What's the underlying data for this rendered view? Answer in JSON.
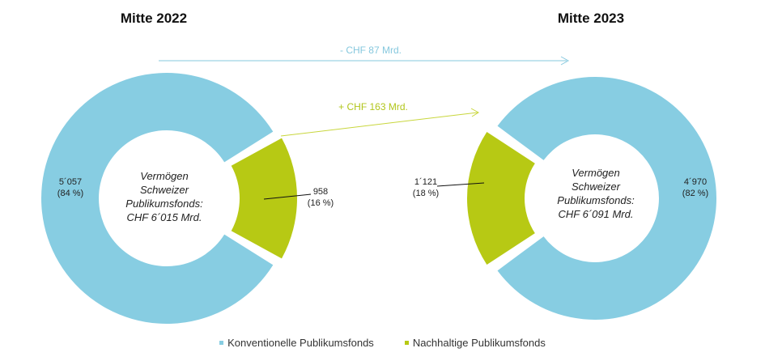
{
  "colors": {
    "konventionell": "#87cde2",
    "nachhaltig": "#b7c914",
    "line_blue": "#86c8de",
    "line_green": "#c8d63c"
  },
  "annotations": {
    "change_total": "- CHF 87 Mrd.",
    "change_sustainable": "+ CHF 163 Mrd."
  },
  "legend": [
    {
      "label": "Konventionelle Publikumsfonds",
      "color": "#87cde2"
    },
    {
      "label": "Nachhaltige Publikumsfonds",
      "color": "#b7c914"
    }
  ],
  "chart_data": [
    {
      "type": "pie",
      "title": "Mitte 2022",
      "center_label": [
        "Vermögen",
        "Schweizer",
        "Publikumsfonds:",
        "CHF 6´015 Mrd."
      ],
      "slices": [
        {
          "name": "Konventionelle Publikumsfonds",
          "value": 5057,
          "label": "5´057",
          "percent_label": "(84 %)"
        },
        {
          "name": "Nachhaltige Publikumsfonds",
          "value": 958,
          "label": "958",
          "percent_label": "(16 %)"
        }
      ]
    },
    {
      "type": "pie",
      "title": "Mitte 2023",
      "center_label": [
        "Vermögen",
        "Schweizer",
        "Publikumsfonds:",
        "CHF 6´091 Mrd."
      ],
      "slices": [
        {
          "name": "Konventionelle Publikumsfonds",
          "value": 4970,
          "label": "4´970",
          "percent_label": "(82 %)"
        },
        {
          "name": "Nachhaltige Publikumsfonds",
          "value": 1121,
          "label": "1´121",
          "percent_label": "(18 %)"
        }
      ]
    }
  ]
}
